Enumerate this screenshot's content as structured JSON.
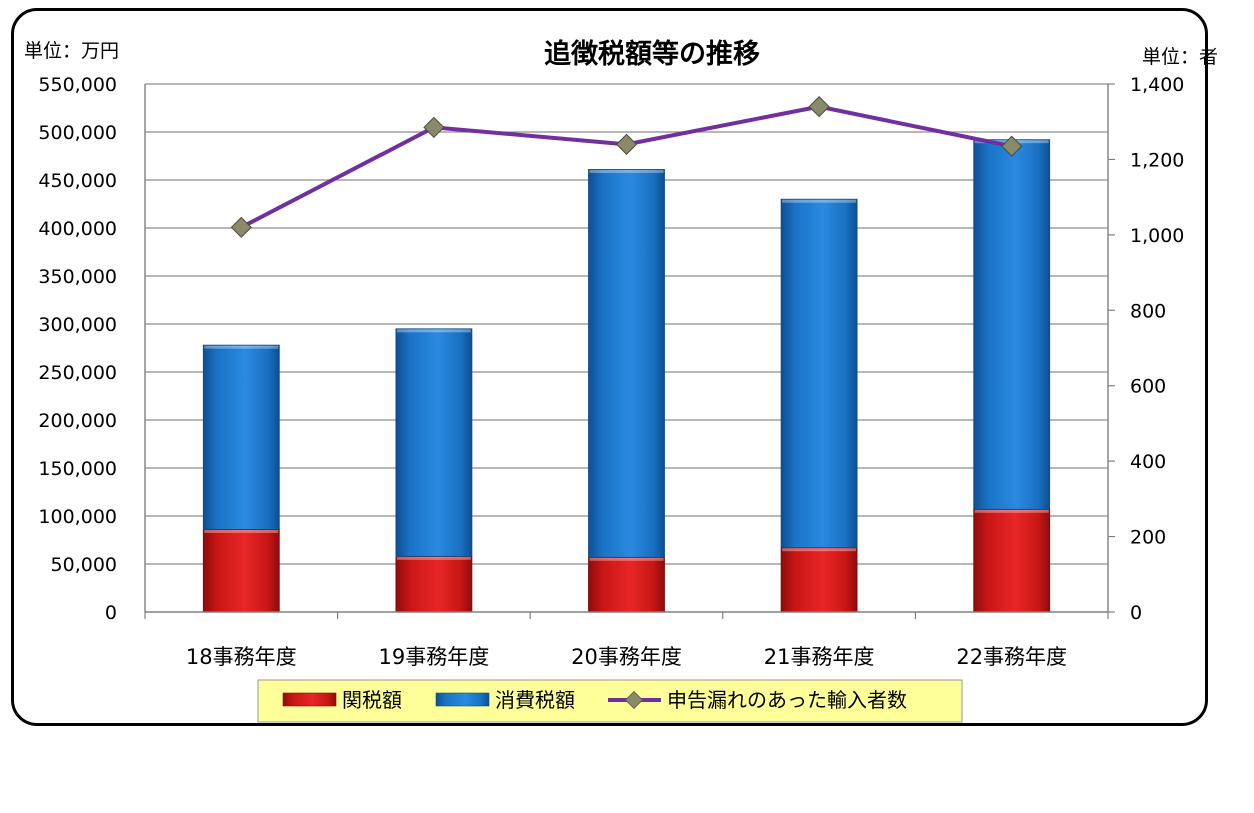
{
  "chart_data": {
    "type": "bar",
    "title": "追徴税額等の推移",
    "left_unit_label": "単位：万円",
    "right_unit_label": "単位：者",
    "categories": [
      "18事務年度",
      "19事務年度",
      "20事務年度",
      "21事務年度",
      "22事務年度"
    ],
    "stacked": true,
    "series": [
      {
        "name": "関税額",
        "axis": "left",
        "kind": "bar",
        "color": "#d01818",
        "values": [
          86000,
          58000,
          57000,
          67000,
          107000
        ]
      },
      {
        "name": "消費税額",
        "axis": "left",
        "kind": "bar",
        "color": "#1a74c8",
        "values": [
          192000,
          237000,
          404000,
          363000,
          385000
        ]
      },
      {
        "name": "申告漏れのあった輸入者数",
        "axis": "right",
        "kind": "line",
        "color": "#7030a0",
        "marker_color": "#8a8a6a",
        "values": [
          1020,
          1285,
          1240,
          1340,
          1235
        ]
      }
    ],
    "y_left": {
      "min": 0,
      "max": 550000,
      "step": 50000,
      "tick_labels": [
        "0",
        "50,000",
        "100,000",
        "150,000",
        "200,000",
        "250,000",
        "300,000",
        "350,000",
        "400,000",
        "450,000",
        "500,000",
        "550,000"
      ]
    },
    "y_right": {
      "min": 0,
      "max": 1400,
      "step": 200,
      "tick_labels": [
        "0",
        "200",
        "400",
        "600",
        "800",
        "1,000",
        "1,200",
        "1,400"
      ]
    },
    "grid": true,
    "legend_position": "bottom"
  }
}
